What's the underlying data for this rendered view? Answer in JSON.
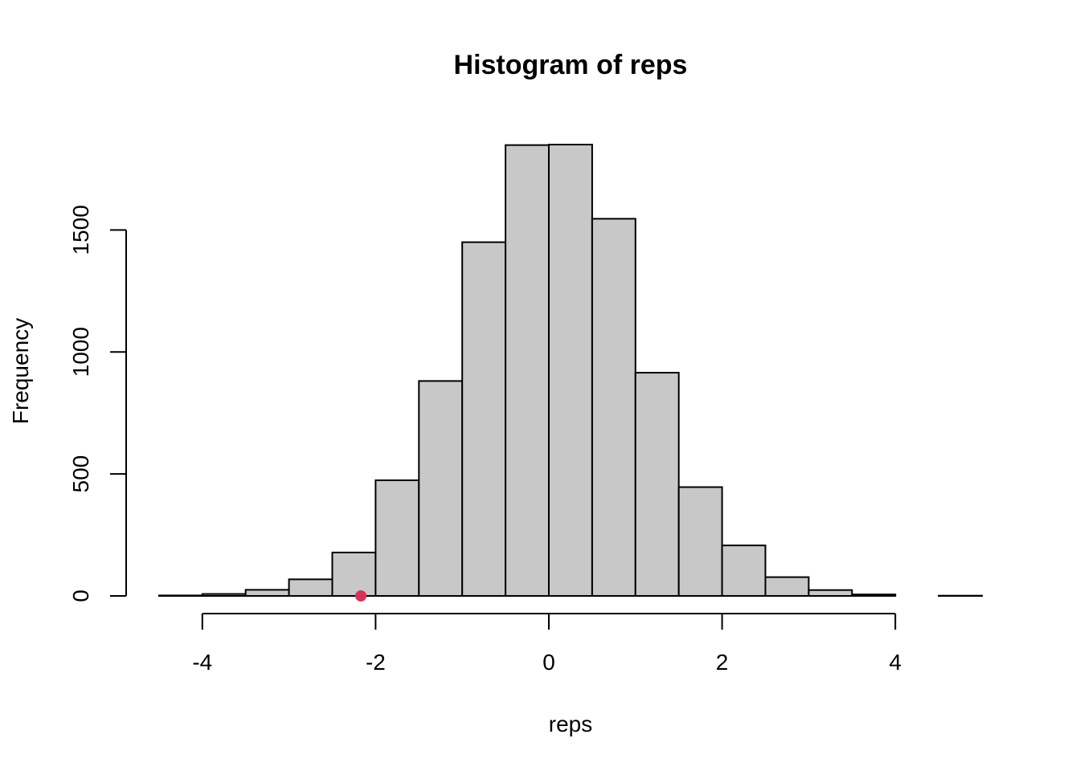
{
  "chart_data": {
    "type": "bar",
    "title": "Histogram of reps",
    "xlabel": "reps",
    "ylabel": "Frequency",
    "bin_width": 0.5,
    "bins": [
      {
        "start": -4.5,
        "end": -4.0,
        "count": 2
      },
      {
        "start": -4.0,
        "end": -3.5,
        "count": 8
      },
      {
        "start": -3.5,
        "end": -3.0,
        "count": 25
      },
      {
        "start": -3.0,
        "end": -2.5,
        "count": 68
      },
      {
        "start": -2.5,
        "end": -2.0,
        "count": 178
      },
      {
        "start": -2.0,
        "end": -1.5,
        "count": 474
      },
      {
        "start": -1.5,
        "end": -1.0,
        "count": 881
      },
      {
        "start": -1.0,
        "end": -0.5,
        "count": 1450
      },
      {
        "start": -0.5,
        "end": 0.0,
        "count": 1848
      },
      {
        "start": 0.0,
        "end": 0.5,
        "count": 1850
      },
      {
        "start": 0.5,
        "end": 1.0,
        "count": 1546
      },
      {
        "start": 1.0,
        "end": 1.5,
        "count": 915
      },
      {
        "start": 1.5,
        "end": 2.0,
        "count": 446
      },
      {
        "start": 2.0,
        "end": 2.5,
        "count": 207
      },
      {
        "start": 2.5,
        "end": 3.0,
        "count": 77
      },
      {
        "start": 3.0,
        "end": 3.5,
        "count": 24
      },
      {
        "start": 3.5,
        "end": 4.0,
        "count": 6
      },
      {
        "start": 4.0,
        "end": 4.5,
        "count": 0
      },
      {
        "start": 4.5,
        "end": 5.0,
        "count": 1
      }
    ],
    "xlim": [
      -4.5,
      5.0
    ],
    "ylim": [
      0,
      1850
    ],
    "xticks": [
      -4,
      -2,
      0,
      2,
      4
    ],
    "yticks": [
      0,
      500,
      1000,
      1500
    ],
    "xtick_labels": [
      "-4",
      "-2",
      "0",
      "2",
      "4"
    ],
    "ytick_labels": [
      "0",
      "500",
      "1000",
      "1500"
    ],
    "grid": false,
    "bar_color": "#c8c8c8",
    "marker": {
      "x": -2.17,
      "y": 0,
      "color": "#d9325a"
    }
  }
}
